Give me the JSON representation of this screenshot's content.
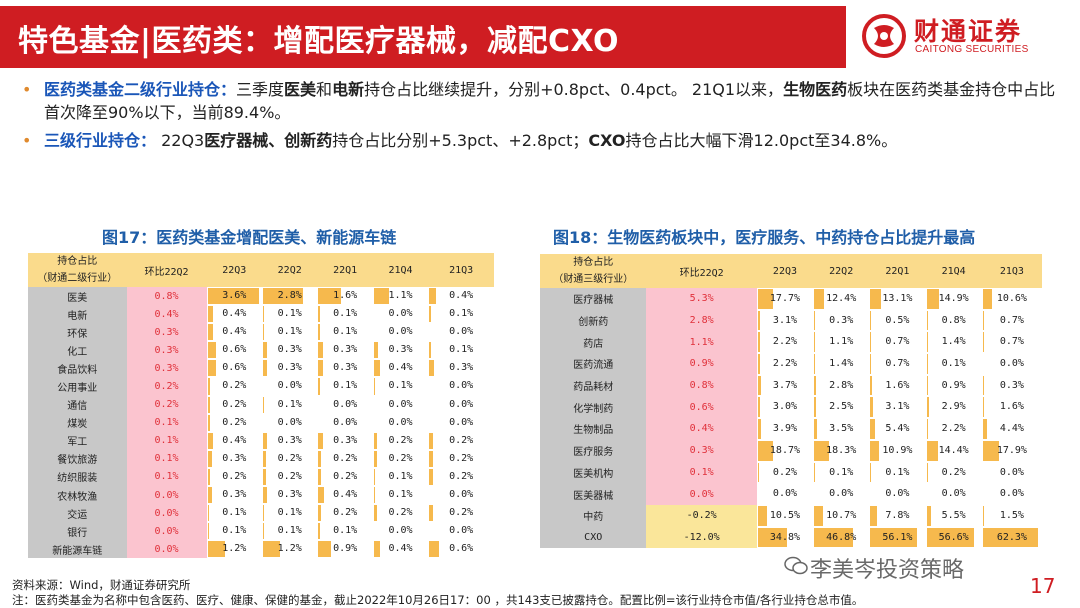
{
  "header": {
    "title": "特色基金|医药类：增配医疗器械，减配CXO",
    "logo_cn": "财通证券",
    "logo_en": "CAITONG SECURITIES",
    "brand_color": "#cf1d22"
  },
  "bullets": [
    {
      "head": "医药类基金二级行业持仓：",
      "parts": [
        {
          "t": "三季度",
          "b": false
        },
        {
          "t": "医美",
          "b": true
        },
        {
          "t": "和",
          "b": false
        },
        {
          "t": "电新",
          "b": true
        },
        {
          "t": "持仓占比继续提升，分别+0.8pct、0.4pct。 21Q1以来，",
          "b": false
        },
        {
          "t": "生物医药",
          "b": true
        },
        {
          "t": "板块在医药类基金持仓中占比首次降至90%以下，当前89.4%。",
          "b": false
        }
      ]
    },
    {
      "head": "三级行业持仓：",
      "parts": [
        {
          "t": " 22Q3",
          "b": false
        },
        {
          "t": "医疗器械、创新药",
          "b": true
        },
        {
          "t": "持仓占比分别+5.3pct、+2.8pct；",
          "b": false
        },
        {
          "t": "CXO",
          "b": true
        },
        {
          "t": "持仓占比大幅下滑12.0pct至34.8%。",
          "b": false
        }
      ]
    }
  ],
  "chart_data": [
    {
      "type": "table",
      "title": "图17：医药类基金增配医美、新能源车链",
      "header_label": [
        "持仓占比",
        "（财通二级行业）"
      ],
      "columns": [
        "环比22Q2",
        "22Q3",
        "22Q2",
        "22Q1",
        "21Q4",
        "21Q3"
      ],
      "rows": [
        {
          "name": "医美",
          "chg": "0.8%",
          "values": [
            3.6,
            2.8,
            1.6,
            1.1,
            0.4
          ]
        },
        {
          "name": "电新",
          "chg": "0.4%",
          "values": [
            0.4,
            0.1,
            0.1,
            0.0,
            0.1
          ]
        },
        {
          "name": "环保",
          "chg": "0.3%",
          "values": [
            0.4,
            0.1,
            0.1,
            0.0,
            0.0
          ]
        },
        {
          "name": "化工",
          "chg": "0.3%",
          "values": [
            0.6,
            0.3,
            0.3,
            0.3,
            0.1
          ]
        },
        {
          "name": "食品饮料",
          "chg": "0.3%",
          "values": [
            0.6,
            0.3,
            0.3,
            0.4,
            0.3
          ]
        },
        {
          "name": "公用事业",
          "chg": "0.2%",
          "values": [
            0.2,
            0.0,
            0.1,
            0.1,
            0.0
          ]
        },
        {
          "name": "通信",
          "chg": "0.2%",
          "values": [
            0.2,
            0.1,
            0.0,
            0.0,
            0.0
          ]
        },
        {
          "name": "煤炭",
          "chg": "0.1%",
          "values": [
            0.2,
            0.0,
            0.0,
            0.0,
            0.0
          ]
        },
        {
          "name": "军工",
          "chg": "0.1%",
          "values": [
            0.4,
            0.3,
            0.3,
            0.2,
            0.2
          ]
        },
        {
          "name": "餐饮旅游",
          "chg": "0.1%",
          "values": [
            0.3,
            0.2,
            0.2,
            0.2,
            0.2
          ]
        },
        {
          "name": "纺织服装",
          "chg": "0.1%",
          "values": [
            0.2,
            0.2,
            0.2,
            0.1,
            0.2
          ]
        },
        {
          "name": "农林牧渔",
          "chg": "0.0%",
          "values": [
            0.3,
            0.3,
            0.4,
            0.1,
            0.0
          ]
        },
        {
          "name": "交运",
          "chg": "0.0%",
          "values": [
            0.1,
            0.1,
            0.2,
            0.2,
            0.2
          ]
        },
        {
          "name": "银行",
          "chg": "0.0%",
          "values": [
            0.1,
            0.1,
            0.1,
            0.0,
            0.0
          ]
        },
        {
          "name": "新能源车链",
          "chg": "0.0%",
          "values": [
            1.2,
            1.2,
            0.9,
            0.4,
            0.6
          ]
        }
      ]
    },
    {
      "type": "table",
      "title": "图18：生物医药板块中，医疗服务、中药持仓占比提升最高",
      "header_label": [
        "持仓占比",
        "（财通三级行业）"
      ],
      "columns": [
        "环比22Q2",
        "22Q3",
        "22Q2",
        "22Q1",
        "21Q4",
        "21Q3"
      ],
      "rows": [
        {
          "name": "医疗器械",
          "chg": "5.3%",
          "values": [
            17.7,
            12.4,
            13.1,
            14.9,
            10.6
          ]
        },
        {
          "name": "创新药",
          "chg": "2.8%",
          "values": [
            3.1,
            0.3,
            0.5,
            0.8,
            0.7
          ]
        },
        {
          "name": "药店",
          "chg": "1.1%",
          "values": [
            2.2,
            1.1,
            0.7,
            1.4,
            0.7
          ]
        },
        {
          "name": "医药流通",
          "chg": "0.9%",
          "values": [
            2.2,
            1.4,
            0.7,
            0.1,
            0.0
          ]
        },
        {
          "name": "药品耗材",
          "chg": "0.8%",
          "values": [
            3.7,
            2.8,
            1.6,
            0.9,
            0.3
          ]
        },
        {
          "name": "化学制药",
          "chg": "0.6%",
          "values": [
            3.0,
            2.5,
            3.1,
            2.9,
            1.6
          ]
        },
        {
          "name": "生物制品",
          "chg": "0.4%",
          "values": [
            3.9,
            3.5,
            5.4,
            2.2,
            4.4
          ]
        },
        {
          "name": "医疗服务",
          "chg": "0.3%",
          "values": [
            18.7,
            18.3,
            10.9,
            14.4,
            17.9
          ]
        },
        {
          "name": "医美机构",
          "chg": "0.1%",
          "values": [
            0.2,
            0.1,
            0.1,
            0.2,
            0.0
          ]
        },
        {
          "name": "医美器械",
          "chg": "0.0%",
          "values": [
            0.0,
            0.0,
            0.0,
            0.0,
            0.0
          ]
        },
        {
          "name": "中药",
          "chg": "-0.2%",
          "values": [
            10.5,
            10.7,
            7.8,
            5.5,
            1.5
          ]
        },
        {
          "name": "CXO",
          "chg": "-12.0%",
          "values": [
            34.8,
            46.8,
            56.1,
            56.6,
            62.3
          ]
        }
      ]
    }
  ],
  "colors": {
    "header_bg": "#fadb8c",
    "label_bg": "#c8c8c8",
    "pos_bg": "#fbc4cf",
    "neg_bg": "#fae69a",
    "bar": "#f5b13a",
    "accent_blue": "#1f5ea8"
  },
  "watermark": "李美岑投资策略",
  "page_number": "17",
  "footnotes": [
    "资料来源：Wind，财通证券研究所",
    "注：医药类基金为名称中包含医药、医疗、健康、保健的基金，截止2022年10月26日17：00 ，共143支已披露持仓。配置比例=该行业持仓市值/各行业持仓总市值。"
  ]
}
